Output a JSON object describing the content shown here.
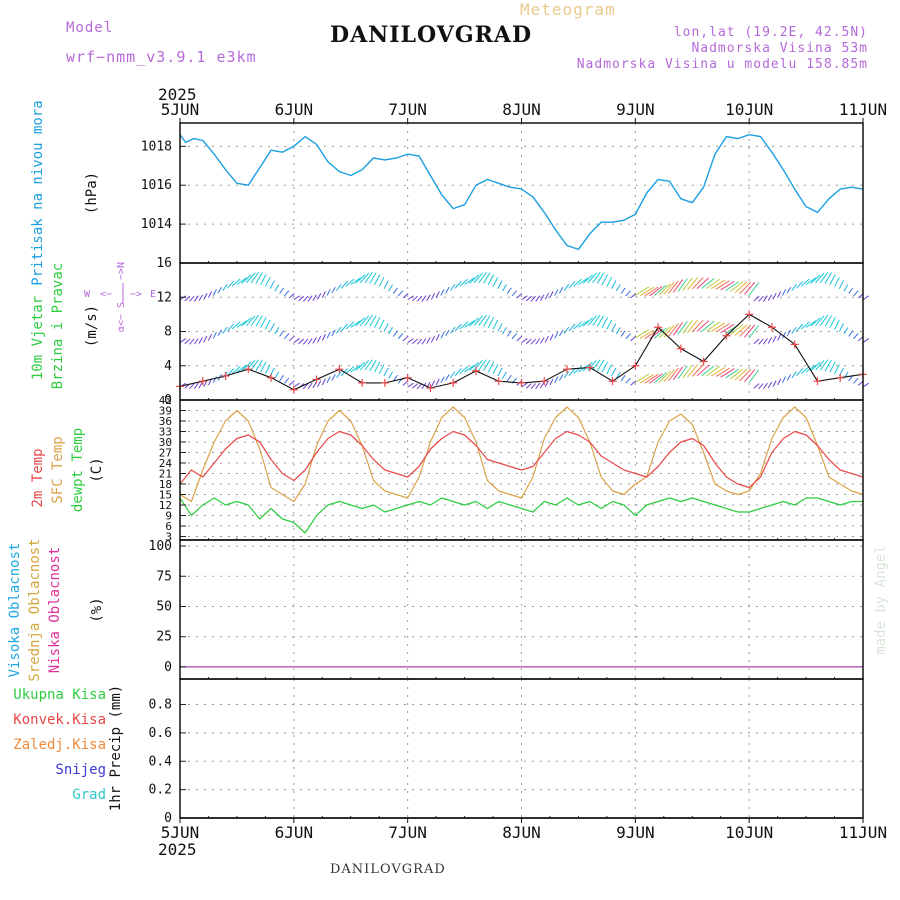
{
  "header": {
    "model_label": "Model",
    "model_value": "wrf−nmm_v3.9.1  e3km",
    "title": "DANILOVGRAD",
    "meteogram": "Meteogram",
    "lonlat": "lon,lat (19.2E, 42.5N)",
    "elevation": "Nadmorska Visina 53m",
    "elevation_model": "Nadmorska Visina u modelu 158.85m",
    "footer_title": "DANILOVGRAD",
    "credit": "made by Angel"
  },
  "colors": {
    "pressure": "#1a9fe0",
    "t2m": "#e8484a",
    "sfc": "#dba24a",
    "dew": "#2ecc40",
    "cloud_high": "#1fa9e1",
    "cloud_mid": "#d4a53a",
    "cloud_low": "#e0309a",
    "wind_axis": "#b56ad9",
    "grid": "#9a9a9a"
  },
  "chart_data": [
    {
      "type": "line",
      "panel": "pressure",
      "title": "Pritisak na nivou mora",
      "ylabel": "(hPa)",
      "ylim": [
        1012,
        1019.2
      ],
      "yticks": [
        1014,
        1016,
        1018
      ],
      "x_dates": [
        "5JUN",
        "6JUN",
        "7JUN",
        "8JUN",
        "9JUN",
        "10JUN",
        "11JUN"
      ],
      "year": "2025",
      "series": [
        {
          "name": "Pritisak na nivou mora",
          "x": [
            0,
            0.05,
            0.12,
            0.2,
            0.3,
            0.4,
            0.5,
            0.6,
            0.7,
            0.8,
            0.9,
            1.0,
            1.1,
            1.2,
            1.3,
            1.4,
            1.5,
            1.6,
            1.7,
            1.8,
            1.9,
            2.0,
            2.1,
            2.2,
            2.3,
            2.4,
            2.5,
            2.6,
            2.7,
            2.8,
            2.9,
            3.0,
            3.1,
            3.2,
            3.3,
            3.4,
            3.5,
            3.6,
            3.7,
            3.8,
            3.9,
            4.0,
            4.1,
            4.2,
            4.3,
            4.4,
            4.5,
            4.6,
            4.7,
            4.8,
            4.9,
            5.0,
            5.1,
            5.2,
            5.3,
            5.4,
            5.5,
            5.6,
            5.7,
            5.8,
            5.9,
            6.0
          ],
          "values": [
            1018.6,
            1018.2,
            1018.4,
            1018.3,
            1017.6,
            1016.8,
            1016.1,
            1016.0,
            1016.9,
            1017.8,
            1017.7,
            1018.0,
            1018.5,
            1018.1,
            1017.2,
            1016.7,
            1016.5,
            1016.8,
            1017.4,
            1017.3,
            1017.4,
            1017.6,
            1017.5,
            1016.5,
            1015.5,
            1014.8,
            1015.0,
            1016.0,
            1016.3,
            1016.1,
            1015.9,
            1015.8,
            1015.4,
            1014.6,
            1013.7,
            1012.9,
            1012.7,
            1013.5,
            1014.1,
            1014.1,
            1014.2,
            1014.5,
            1015.6,
            1016.3,
            1016.2,
            1015.3,
            1015.1,
            1015.9,
            1017.6,
            1018.5,
            1018.4,
            1018.6,
            1018.5,
            1017.7,
            1016.8,
            1015.8,
            1014.9,
            1014.6,
            1015.3,
            1015.8,
            1015.9,
            1015.8
          ]
        }
      ]
    },
    {
      "type": "line",
      "panel": "wind",
      "title": "10m Vjetar Brzina i Pravac",
      "ylabel": "(m/s)",
      "ylim": [
        0,
        16
      ],
      "yticks": [
        0,
        4,
        8,
        12,
        16
      ],
      "compass": {
        "s": "α<− S",
        "n": "−>N",
        "w": "W",
        "e": "E"
      },
      "x_dates": [
        "5JUN",
        "6JUN",
        "7JUN",
        "8JUN",
        "9JUN",
        "10JUN",
        "11JUN"
      ],
      "series": [
        {
          "name": "10m Vjetar",
          "x": [
            0,
            0.2,
            0.4,
            0.6,
            0.8,
            1.0,
            1.2,
            1.4,
            1.6,
            1.8,
            2.0,
            2.2,
            2.4,
            2.6,
            2.8,
            3.0,
            3.2,
            3.4,
            3.6,
            3.8,
            4.0,
            4.2,
            4.4,
            4.6,
            4.8,
            5.0,
            5.2,
            5.4,
            5.6,
            5.8,
            6.0
          ],
          "values": [
            1.6,
            2.2,
            2.8,
            3.6,
            2.6,
            1.2,
            2.4,
            3.6,
            2.0,
            2.0,
            2.6,
            1.4,
            2.0,
            3.4,
            2.2,
            2.0,
            2.2,
            3.6,
            3.8,
            2.2,
            4.0,
            8.5,
            6.0,
            4.5,
            7.5,
            10.0,
            8.5,
            6.5,
            2.2,
            2.6,
            3.0
          ]
        }
      ]
    },
    {
      "type": "line",
      "panel": "temperature",
      "ylabel": "(C)",
      "ylim": [
        2,
        42
      ],
      "yticks": [
        3,
        6,
        9,
        12,
        15,
        18,
        21,
        24,
        27,
        30,
        33,
        36,
        39,
        42
      ],
      "x_dates": [
        "5JUN",
        "6JUN",
        "7JUN",
        "8JUN",
        "9JUN",
        "10JUN",
        "11JUN"
      ],
      "series": [
        {
          "name": "2m Temp",
          "x": [
            0,
            0.1,
            0.2,
            0.3,
            0.4,
            0.5,
            0.6,
            0.7,
            0.8,
            0.9,
            1.0,
            1.1,
            1.2,
            1.3,
            1.4,
            1.5,
            1.6,
            1.7,
            1.8,
            1.9,
            2.0,
            2.1,
            2.2,
            2.3,
            2.4,
            2.5,
            2.6,
            2.7,
            2.8,
            2.9,
            3.0,
            3.1,
            3.2,
            3.3,
            3.4,
            3.5,
            3.6,
            3.7,
            3.8,
            3.9,
            4.0,
            4.1,
            4.2,
            4.3,
            4.4,
            4.5,
            4.6,
            4.7,
            4.8,
            4.9,
            5.0,
            5.1,
            5.2,
            5.3,
            5.4,
            5.5,
            5.6,
            5.7,
            5.8,
            5.9,
            6.0
          ],
          "values": [
            18,
            22,
            20,
            24,
            28,
            31,
            32,
            30,
            25,
            21,
            19,
            22,
            27,
            31,
            33,
            32,
            29,
            25,
            22,
            21,
            20,
            23,
            28,
            31,
            33,
            32,
            29,
            25,
            24,
            23,
            22,
            23,
            27,
            31,
            33,
            32,
            30,
            26,
            24,
            22,
            21,
            20,
            23,
            27,
            30,
            31,
            29,
            24,
            20,
            18,
            17,
            20,
            27,
            31,
            33,
            32,
            29,
            25,
            22,
            21,
            20
          ]
        },
        {
          "name": "SFC Temp",
          "x": [
            0,
            0.1,
            0.2,
            0.3,
            0.4,
            0.5,
            0.6,
            0.7,
            0.8,
            0.9,
            1.0,
            1.1,
            1.2,
            1.3,
            1.4,
            1.5,
            1.6,
            1.7,
            1.8,
            1.9,
            2.0,
            2.1,
            2.2,
            2.3,
            2.4,
            2.5,
            2.6,
            2.7,
            2.8,
            2.9,
            3.0,
            3.1,
            3.2,
            3.3,
            3.4,
            3.5,
            3.6,
            3.7,
            3.8,
            3.9,
            4.0,
            4.1,
            4.2,
            4.3,
            4.4,
            4.5,
            4.6,
            4.7,
            4.8,
            4.9,
            5.0,
            5.1,
            5.2,
            5.3,
            5.4,
            5.5,
            5.6,
            5.7,
            5.8,
            5.9,
            6.0
          ],
          "values": [
            15,
            13,
            22,
            30,
            36,
            39,
            36,
            28,
            17,
            15,
            13,
            18,
            29,
            36,
            39,
            36,
            29,
            19,
            16,
            15,
            14,
            20,
            30,
            37,
            40,
            37,
            30,
            19,
            16,
            15,
            14,
            20,
            31,
            37,
            40,
            37,
            30,
            20,
            16,
            15,
            18,
            20,
            30,
            36,
            38,
            35,
            27,
            18,
            16,
            15,
            16,
            21,
            31,
            37,
            40,
            37,
            29,
            20,
            18,
            16,
            15
          ]
        },
        {
          "name": "dewpt Temp",
          "x": [
            0,
            0.1,
            0.2,
            0.3,
            0.4,
            0.5,
            0.6,
            0.7,
            0.8,
            0.9,
            1.0,
            1.1,
            1.2,
            1.3,
            1.4,
            1.5,
            1.6,
            1.7,
            1.8,
            1.9,
            2.0,
            2.1,
            2.2,
            2.3,
            2.4,
            2.5,
            2.6,
            2.7,
            2.8,
            2.9,
            3.0,
            3.1,
            3.2,
            3.3,
            3.4,
            3.5,
            3.6,
            3.7,
            3.8,
            3.9,
            4.0,
            4.1,
            4.2,
            4.3,
            4.4,
            4.5,
            4.6,
            4.7,
            4.8,
            4.9,
            5.0,
            5.1,
            5.2,
            5.3,
            5.4,
            5.5,
            5.6,
            5.7,
            5.8,
            5.9,
            6.0
          ],
          "values": [
            14,
            9,
            12,
            14,
            12,
            13,
            12,
            8,
            11,
            8,
            7,
            4,
            9,
            12,
            13,
            12,
            11,
            12,
            10,
            11,
            12,
            13,
            12,
            14,
            13,
            12,
            13,
            11,
            13,
            12,
            11,
            10,
            13,
            12,
            14,
            12,
            13,
            11,
            13,
            12,
            9,
            12,
            13,
            14,
            13,
            14,
            13,
            12,
            11,
            10,
            10,
            11,
            12,
            13,
            12,
            14,
            14,
            13,
            12,
            13,
            13
          ]
        }
      ]
    },
    {
      "type": "line",
      "panel": "clouds",
      "ylabel": "(%)",
      "ylim": [
        -10,
        105
      ],
      "yticks": [
        0,
        25,
        50,
        75,
        100
      ],
      "x_dates": [
        "5JUN",
        "6JUN",
        "7JUN",
        "8JUN",
        "9JUN",
        "10JUN",
        "11JUN"
      ],
      "series": [
        {
          "name": "Visoka Oblacnost",
          "x": [
            0,
            6
          ],
          "values": [
            0,
            0
          ]
        },
        {
          "name": "Srednja Oblacnost",
          "x": [
            0,
            6
          ],
          "values": [
            0,
            0
          ]
        },
        {
          "name": "Niska Oblacnost",
          "x": [
            0,
            6
          ],
          "values": [
            0,
            0
          ]
        }
      ]
    },
    {
      "type": "line",
      "panel": "precip",
      "ylabel": "1hr Precip (mm)",
      "ylim": [
        0,
        0.98
      ],
      "yticks": [
        0,
        0.2,
        0.4,
        0.6,
        0.8
      ],
      "yticks_labels": [
        "0",
        "0.2",
        "0.4",
        "0.6",
        "0.8"
      ],
      "x_dates": [
        "5JUN",
        "6JUN",
        "7JUN",
        "8JUN",
        "9JUN",
        "10JUN",
        "11JUN"
      ],
      "year": "2025",
      "series": [
        {
          "name": "Ukupna Kisa",
          "x": [
            0,
            6
          ],
          "values": [
            0,
            0
          ]
        },
        {
          "name": "Konvek.Kisa",
          "x": [
            0,
            6
          ],
          "values": [
            0,
            0
          ]
        },
        {
          "name": "Zaledj.Kisa",
          "x": [
            0,
            6
          ],
          "values": [
            0,
            0
          ]
        },
        {
          "name": "Snijeg",
          "x": [
            0,
            6
          ],
          "values": [
            0,
            0
          ]
        },
        {
          "name": "Grad",
          "x": [
            0,
            6
          ],
          "values": [
            0,
            0
          ]
        }
      ]
    }
  ]
}
